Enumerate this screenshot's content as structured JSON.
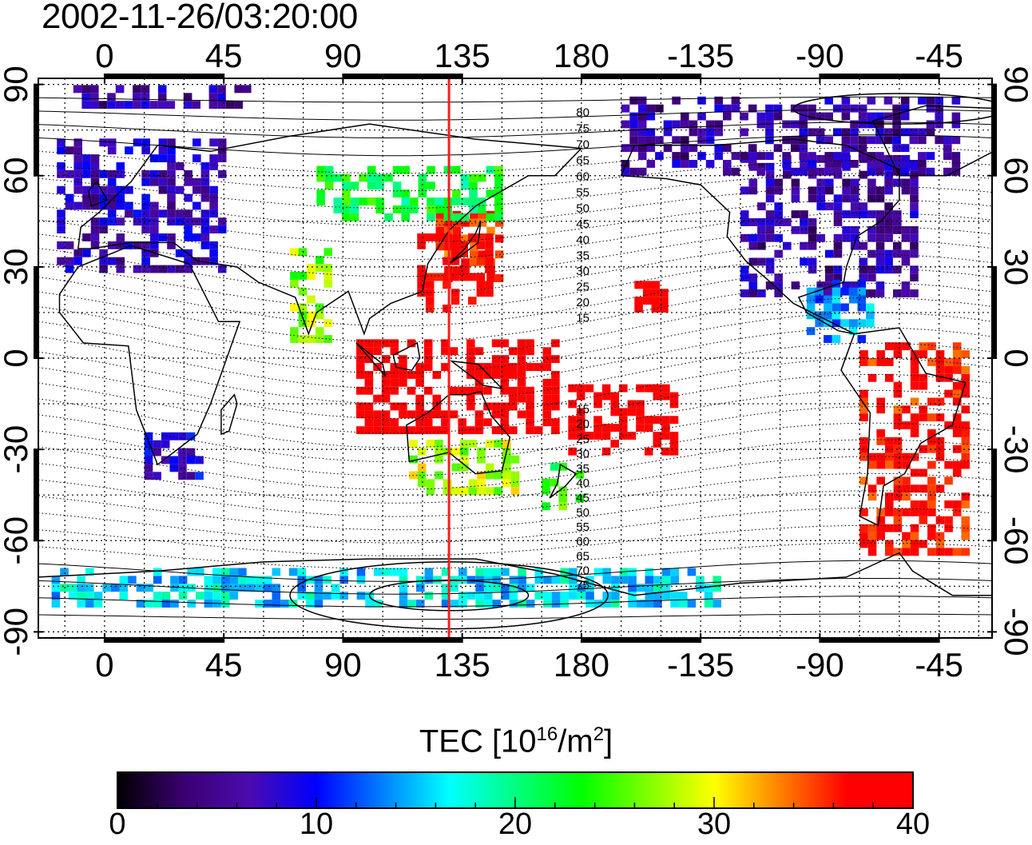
{
  "title": "2002-11-26/03:20:00",
  "map": {
    "top_axis_ticks": [
      {
        "lon": 0,
        "label": "0"
      },
      {
        "lon": 45,
        "label": "45"
      },
      {
        "lon": 90,
        "label": "90"
      },
      {
        "lon": 135,
        "label": "135"
      },
      {
        "lon": 180,
        "label": "180"
      },
      {
        "lon": 225,
        "label": "-135"
      },
      {
        "lon": 270,
        "label": "-90"
      },
      {
        "lon": 315,
        "label": "-45"
      }
    ],
    "bottom_axis_ticks": [
      {
        "lon": 0,
        "label": "0"
      },
      {
        "lon": 45,
        "label": "45"
      },
      {
        "lon": 90,
        "label": "90"
      },
      {
        "lon": 135,
        "label": "135"
      },
      {
        "lon": 180,
        "label": "180"
      },
      {
        "lon": 225,
        "label": "-135"
      },
      {
        "lon": 270,
        "label": "-90"
      },
      {
        "lon": 315,
        "label": "-45"
      }
    ],
    "lat_ticks": [
      {
        "lat": 90,
        "label": "90"
      },
      {
        "lat": 60,
        "label": "60"
      },
      {
        "lat": 30,
        "label": "30"
      },
      {
        "lat": 0,
        "label": "0"
      },
      {
        "lat": -30,
        "label": "-30"
      },
      {
        "lat": -60,
        "label": "-60"
      },
      {
        "lat": -90,
        "label": "-90"
      }
    ],
    "lon_range": [
      -25,
      335
    ],
    "lat_range": [
      -92,
      92
    ],
    "terminator_lon": 130,
    "mlat_labels": [
      "80",
      "75",
      "70",
      "65",
      "60",
      "55",
      "50",
      "45",
      "40",
      "35",
      "30",
      "25",
      "20",
      "15",
      "15",
      "20",
      "25",
      "30",
      "35",
      "40",
      "45",
      "50",
      "55",
      "60",
      "65",
      "70",
      "75"
    ],
    "colors": {
      "terminator": "#ff1a1a",
      "coast": "#000000"
    }
  },
  "colorbar": {
    "label_main": "TEC  [10",
    "label_exp1": "16",
    "label_mid": "/m",
    "label_exp2": "2",
    "label_end": "]",
    "range": [
      0,
      40
    ],
    "tick_labels": [
      {
        "value": 0,
        "label": "0"
      },
      {
        "value": 10,
        "label": "10"
      },
      {
        "value": 20,
        "label": "20"
      },
      {
        "value": 30,
        "label": "30"
      },
      {
        "value": 40,
        "label": "40"
      }
    ],
    "stops": [
      "#000000",
      "#3a0070",
      "#4b0bb0",
      "#0000ff",
      "#0080ff",
      "#00ffff",
      "#00ff80",
      "#00ff00",
      "#80ff00",
      "#ffff00",
      "#ff8000",
      "#ff0000",
      "#ff0000"
    ]
  },
  "tec_regions": [
    {
      "region": "europe",
      "lon": [
        -18,
        45
      ],
      "lat": [
        28,
        72
      ],
      "value": 7
    },
    {
      "region": "greenland-arc",
      "lon": [
        -15,
        55
      ],
      "lat": [
        82,
        88
      ],
      "value": 6
    },
    {
      "region": "north-america",
      "lon": [
        240,
        305
      ],
      "lat": [
        20,
        65
      ],
      "value": 6
    },
    {
      "region": "alaska-canada",
      "lon": [
        195,
        320
      ],
      "lat": [
        60,
        85
      ],
      "value": 6
    },
    {
      "region": "japan",
      "lon": [
        125,
        150
      ],
      "lat": [
        25,
        48
      ],
      "value": 36
    },
    {
      "region": "east-asia",
      "lon": [
        118,
        145
      ],
      "lat": [
        15,
        40
      ],
      "value": 39
    },
    {
      "region": "siberia",
      "lon": [
        80,
        150
      ],
      "lat": [
        45,
        62
      ],
      "value": 22
    },
    {
      "region": "indonesia",
      "lon": [
        95,
        170
      ],
      "lat": [
        -25,
        5
      ],
      "value": 40
    },
    {
      "region": "australia",
      "lon": [
        115,
        155
      ],
      "lat": [
        -45,
        -28
      ],
      "value": 28
    },
    {
      "region": "new-zealand",
      "lon": [
        165,
        180
      ],
      "lat": [
        -50,
        -35
      ],
      "value": 24
    },
    {
      "region": "pacific-south",
      "lon": [
        175,
        215
      ],
      "lat": [
        -32,
        -10
      ],
      "value": 40
    },
    {
      "region": "hawaii",
      "lon": [
        200,
        210
      ],
      "lat": [
        15,
        25
      ],
      "value": 40
    },
    {
      "region": "south-america",
      "lon": [
        285,
        325
      ],
      "lat": [
        -65,
        5
      ],
      "value": 37
    },
    {
      "region": "central-america",
      "lon": [
        265,
        290
      ],
      "lat": [
        5,
        25
      ],
      "value": 14
    },
    {
      "region": "antarctica-coast",
      "lon": [
        -20,
        230
      ],
      "lat": [
        -82,
        -70
      ],
      "value": 16
    },
    {
      "region": "south-africa",
      "lon": [
        15,
        35
      ],
      "lat": [
        -40,
        -25
      ],
      "value": 8
    },
    {
      "region": "india",
      "lon": [
        70,
        85
      ],
      "lat": [
        5,
        35
      ],
      "value": 27
    }
  ]
}
